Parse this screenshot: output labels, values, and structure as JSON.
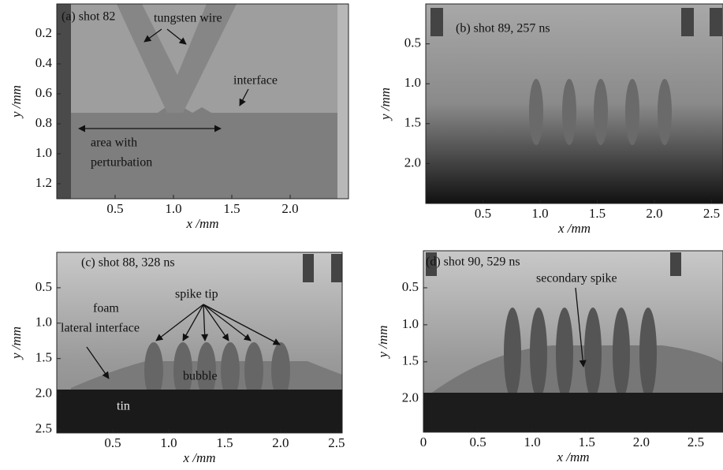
{
  "chart_data": [
    {
      "type": "image",
      "xlabel": "x /mm",
      "ylabel": "y /mm",
      "xlim": [
        0,
        2.5
      ],
      "ylim": [
        0,
        1.3
      ],
      "xticks": [
        0.5,
        {
          "value": 1,
          "label": "1.0"
        },
        1.5,
        {
          "value": 2,
          "label": "2.0"
        }
      ],
      "yticks": [
        0.2,
        0.4,
        0.6,
        0.8,
        {
          "value": 1,
          "label": "1.0"
        },
        1.2
      ],
      "annotations": [
        [
          "(a) shot 82"
        ],
        [
          "tungsten wire"
        ],
        [
          "interface"
        ],
        [
          "area with",
          "perturbation"
        ]
      ]
    },
    {
      "type": "image",
      "xlabel": "x /mm",
      "ylabel": "y /mm",
      "xlim": [
        0,
        2.6
      ],
      "ylim": [
        0,
        2.5
      ],
      "xticks": [
        0.5,
        {
          "value": 1,
          "label": "1.0"
        },
        1.5,
        {
          "value": 2,
          "label": "2.0"
        },
        2.5
      ],
      "yticks": [
        0.5,
        {
          "value": 1,
          "label": "1.0"
        },
        1.5,
        {
          "value": 2,
          "label": "2.0"
        }
      ],
      "annotations": [
        [
          "(b) shot 89, 257 ns"
        ]
      ]
    },
    {
      "type": "image",
      "xlabel": "x /mm",
      "ylabel": "y /mm",
      "xlim": [
        0,
        2.55
      ],
      "ylim": [
        0,
        2.55
      ],
      "xticks": [
        0.5,
        {
          "value": 1,
          "label": "1.0"
        },
        1.5,
        {
          "value": 2,
          "label": "2.0"
        },
        2.5
      ],
      "yticks": [
        0.5,
        {
          "value": 1,
          "label": "1.0"
        },
        1.5,
        {
          "value": 2,
          "label": "2.0"
        },
        2.5
      ],
      "annotations": [
        [
          "(c) shot 88, 328 ns"
        ],
        [
          "spike tip"
        ],
        [
          "foam"
        ],
        [
          "lateral interface"
        ],
        [
          "bubble"
        ],
        [
          "tin"
        ]
      ]
    },
    {
      "type": "image",
      "xlabel": "x /mm",
      "ylabel": "y /mm",
      "xlim": [
        0,
        2.75
      ],
      "ylim": [
        0,
        2.45
      ],
      "xticks": [
        0,
        0.5,
        {
          "value": 1,
          "label": "1.0"
        },
        1.5,
        {
          "value": 2,
          "label": "2.0"
        },
        2.5
      ],
      "yticks": [
        0.5,
        {
          "value": 1,
          "label": "1.0"
        },
        1.5,
        {
          "value": 2,
          "label": "2.0"
        }
      ],
      "annotations": [
        [
          "(d) shot 90, 529 ns"
        ],
        [
          "secondary spike"
        ]
      ]
    }
  ]
}
